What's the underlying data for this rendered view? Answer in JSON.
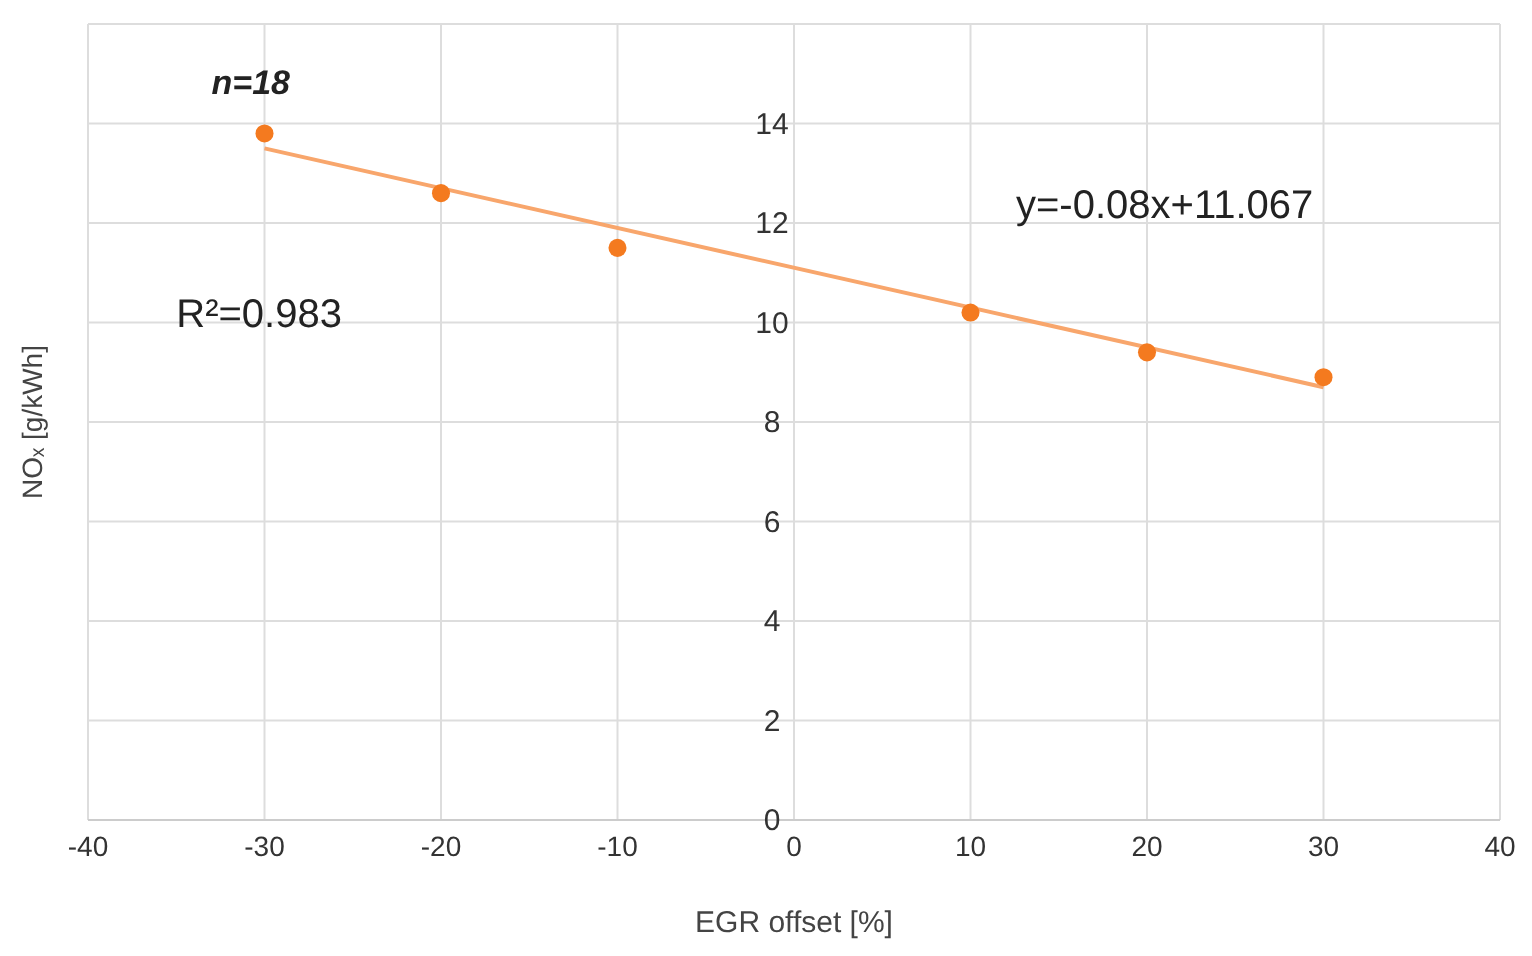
{
  "chart_data": {
    "type": "scatter",
    "xlabel": "EGR offset [%]",
    "ylabel": "NOₓ [g/kWh]",
    "x": [
      -30,
      -20,
      -10,
      10,
      20,
      30
    ],
    "series": [
      {
        "color": "#f47a1f",
        "marker": "circle",
        "values": [
          13.8,
          12.6,
          11.5,
          10.2,
          9.4,
          8.9
        ]
      },
      {
        "type": "line",
        "color": "#f8a66c",
        "x": [
          -30,
          30
        ],
        "values": [
          13.5,
          8.7
        ]
      }
    ],
    "xlim": [
      -40,
      40
    ],
    "xticks": [
      -40,
      -30,
      -20,
      -10,
      0,
      10,
      20,
      30,
      40
    ],
    "ylim": [
      0,
      16
    ],
    "yticks": [
      0,
      2,
      4,
      6,
      8,
      10,
      12,
      14,
      {
        "value": 16,
        "label": null
      }
    ],
    "grid": true,
    "annotations": [
      "n=18",
      "R²=0.983",
      "y=-0.08x+11.067"
    ]
  }
}
